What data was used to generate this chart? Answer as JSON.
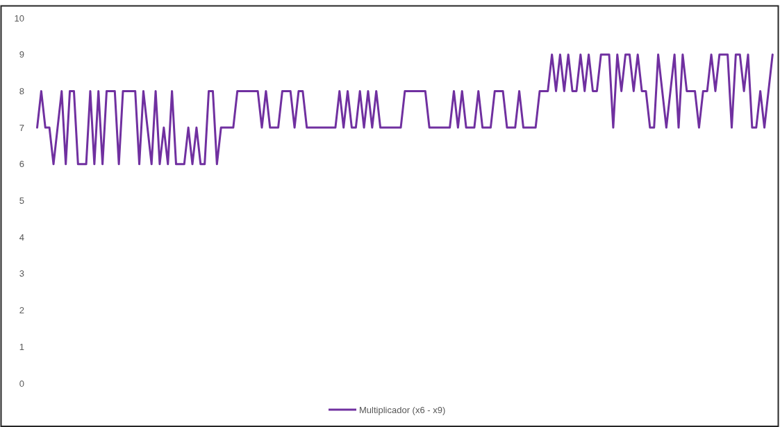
{
  "chart_data": {
    "type": "line",
    "categories": [
      null,
      null,
      null,
      null,
      null,
      null,
      null,
      null,
      null,
      null,
      null,
      null,
      null,
      null,
      null,
      null,
      null,
      null,
      null,
      null,
      null,
      null,
      null,
      null,
      null,
      null,
      null,
      null,
      null,
      null,
      null,
      null,
      null,
      null,
      null,
      null,
      null,
      null,
      null,
      null,
      null,
      null,
      null,
      null,
      null,
      null,
      null,
      null,
      null,
      null,
      null,
      null,
      null,
      null,
      null,
      null,
      null,
      null,
      null,
      null,
      null,
      null,
      null,
      null,
      null,
      null,
      null,
      null,
      null,
      null,
      null,
      null,
      null,
      null,
      null,
      null,
      null,
      null,
      null,
      null,
      null,
      null,
      null,
      null,
      null,
      null,
      null,
      null,
      null,
      null,
      null,
      null,
      null,
      null,
      null,
      null,
      null,
      null,
      null,
      null,
      null,
      null,
      null,
      null,
      null,
      null,
      null,
      null,
      null,
      null,
      null,
      null,
      null,
      null,
      null,
      null,
      null,
      null,
      null,
      null,
      null,
      null,
      null,
      null,
      null,
      null,
      null,
      null,
      null,
      null,
      null,
      null,
      null,
      null,
      null,
      null,
      null,
      null,
      null,
      null,
      null,
      null,
      null,
      null,
      null,
      null,
      null,
      null,
      null,
      null,
      null,
      null,
      null,
      null,
      null,
      null,
      null,
      null,
      null,
      null,
      null,
      null,
      null,
      null,
      null,
      null,
      null,
      null,
      null,
      null,
      null,
      null,
      null,
      null,
      null,
      null,
      null,
      null,
      null,
      null,
      null
    ],
    "series": [
      {
        "name": "Multiplicador (x6 - x9)",
        "color": "#7030a0",
        "values": [
          7,
          8,
          7,
          7,
          6,
          7,
          8,
          6,
          8,
          8,
          6,
          6,
          6,
          8,
          6,
          8,
          6,
          8,
          8,
          8,
          6,
          8,
          8,
          8,
          8,
          6,
          8,
          7,
          6,
          8,
          6,
          7,
          6,
          8,
          6,
          6,
          6,
          7,
          6,
          7,
          6,
          6,
          8,
          8,
          6,
          7,
          7,
          7,
          7,
          8,
          8,
          8,
          8,
          8,
          8,
          7,
          8,
          7,
          7,
          7,
          8,
          8,
          8,
          7,
          8,
          8,
          7,
          7,
          7,
          7,
          7,
          7,
          7,
          7,
          8,
          7,
          8,
          7,
          7,
          8,
          7,
          8,
          7,
          8,
          7,
          7,
          7,
          7,
          7,
          7,
          8,
          8,
          8,
          8,
          8,
          8,
          7,
          7,
          7,
          7,
          7,
          7,
          8,
          7,
          8,
          7,
          7,
          7,
          8,
          7,
          7,
          7,
          8,
          8,
          8,
          7,
          7,
          7,
          8,
          7,
          7,
          7,
          7,
          8,
          8,
          8,
          9,
          8,
          9,
          8,
          9,
          8,
          8,
          9,
          8,
          9,
          8,
          8,
          9,
          9,
          9,
          7,
          9,
          8,
          9,
          9,
          8,
          9,
          8,
          8,
          7,
          7,
          9,
          8,
          7,
          8,
          9,
          7,
          9,
          8,
          8,
          8,
          7,
          8,
          8,
          9,
          8,
          9,
          9,
          9,
          7,
          9,
          9,
          8,
          9,
          7,
          7,
          8,
          7,
          8,
          9
        ]
      }
    ],
    "ylim": [
      0,
      10
    ],
    "yticks": [
      0,
      1,
      2,
      3,
      4,
      5,
      6,
      7,
      8,
      9,
      10
    ],
    "tick_labels": "y",
    "grid": false,
    "legend": "bottom",
    "line_style": "solid"
  }
}
